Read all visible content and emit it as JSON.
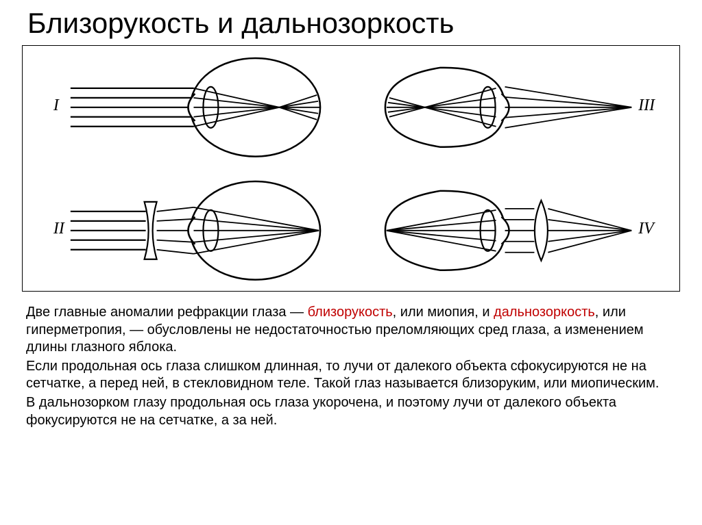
{
  "title": "Близорукость и дальнозоркость",
  "diagrams": {
    "labels": {
      "i": "I",
      "ii": "II",
      "iii": "III",
      "iv": "IV"
    },
    "stroke": "#000000",
    "stroke_width": 2.2,
    "label_font": "italic 22px serif"
  },
  "paragraphs": [
    {
      "segments": [
        {
          "text": "Две главные аномалии рефракции глаза — "
        },
        {
          "text": "близорукость",
          "hl": true
        },
        {
          "text": ", или миопия, и "
        },
        {
          "text": "дальнозоркость",
          "hl": true
        },
        {
          "text": ", или гиперметропия, — обусловлены не недостаточностью преломляющих сред глаза, а изменением длины глазного яблока."
        }
      ]
    },
    {
      "segments": [
        {
          "text": "Если продольная ось глаза слишком длинная, то лучи от далекого объекта сфокусируются не на сетчатке, а перед ней, в стекловидном теле. Такой глаз называется близоруким, или миопическим."
        }
      ]
    },
    {
      "segments": [
        {
          "text": "В дальнозорком глазу продольная ось глаза укорочена, и поэтому лучи от далекого объекта фокусируются не на сетчатке, а за ней."
        }
      ]
    }
  ]
}
